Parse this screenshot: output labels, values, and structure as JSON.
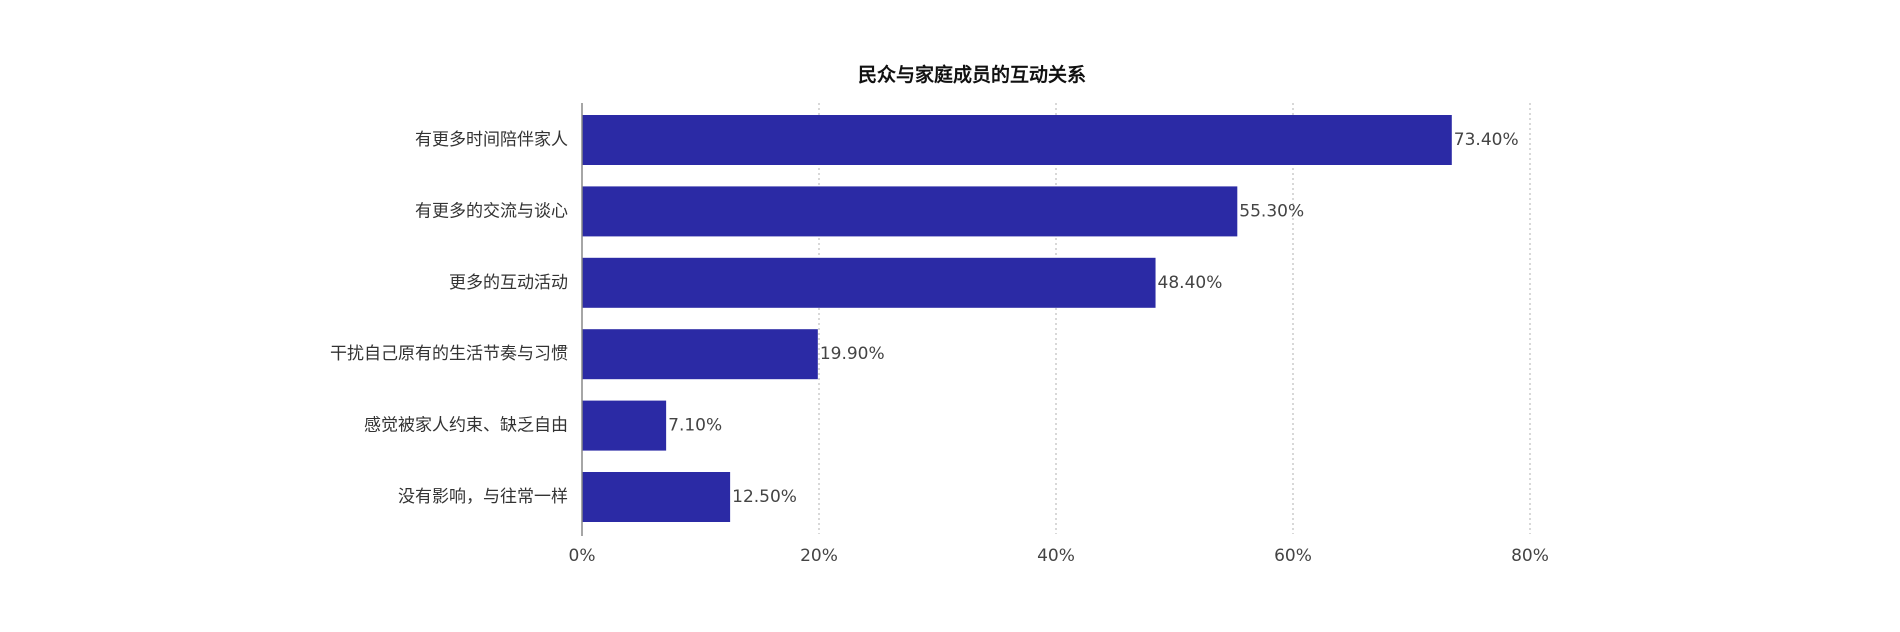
{
  "chart_data": {
    "type": "bar",
    "orientation": "horizontal",
    "title": "民众与家庭成员的互动关系",
    "xlabel": "",
    "ylabel": "",
    "categories": [
      "有更多时间陪伴家人",
      "有更多的交流与谈心",
      "更多的互动活动",
      "干扰自己原有的生活节奏与习惯",
      "感觉被家人约束、缺乏自由",
      "没有影响，与往常一样"
    ],
    "values": [
      73.4,
      55.3,
      48.4,
      19.9,
      7.1,
      12.5
    ],
    "value_labels": [
      "73.40%",
      "55.30%",
      "48.40%",
      "19.90%",
      "7.10%",
      "12.50%"
    ],
    "xlim": [
      0,
      80
    ],
    "xticks": [
      0,
      20,
      40,
      60,
      80
    ],
    "xtick_labels": [
      "0%",
      "20%",
      "40%",
      "60%",
      "80%"
    ],
    "grid": "vertical dotted",
    "legend": "none",
    "bar_color": "#2b2aa5"
  }
}
